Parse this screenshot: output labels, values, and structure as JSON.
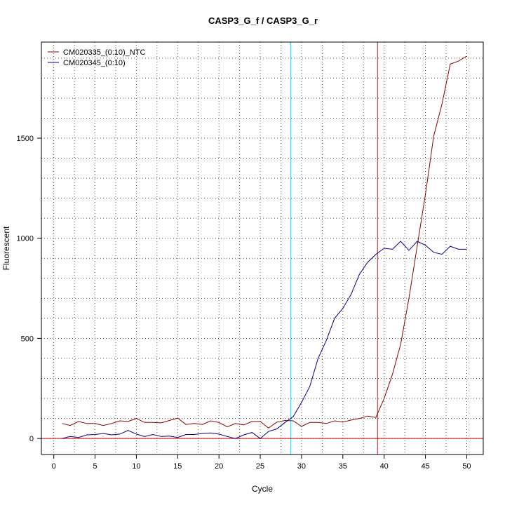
{
  "chart_data": {
    "type": "line",
    "title": "CASP3_G_f / CASP3_G_r",
    "xlabel": "Cycle",
    "ylabel": "Fluorescent",
    "xlim": [
      -1.5,
      52
    ],
    "ylim": [
      -80,
      1980
    ],
    "x_ticks": [
      0,
      5,
      10,
      15,
      20,
      25,
      30,
      35,
      40,
      45,
      50
    ],
    "y_ticks": [
      0,
      500,
      1000,
      1500
    ],
    "grid": true,
    "legend_position": "top-left",
    "vertical_markers": [
      {
        "x": 28.7,
        "color": "#00e5ee"
      },
      {
        "x": 39.2,
        "color": "#b22222"
      }
    ],
    "threshold": {
      "y": 0,
      "color": "#cc0000"
    },
    "series": [
      {
        "name": "CM020335_(0:10)_NTC",
        "color": "#8b0000",
        "x": [
          1,
          2,
          3,
          4,
          5,
          6,
          7,
          8,
          9,
          10,
          11,
          12,
          13,
          14,
          15,
          16,
          17,
          18,
          19,
          20,
          21,
          22,
          23,
          24,
          25,
          26,
          27,
          28,
          29,
          30,
          31,
          32,
          33,
          34,
          35,
          36,
          37,
          38,
          39,
          40,
          41,
          42,
          43,
          44,
          45,
          46,
          47,
          48,
          49,
          50
        ],
        "values": [
          75,
          65,
          85,
          75,
          75,
          65,
          75,
          88,
          85,
          100,
          80,
          80,
          78,
          90,
          102,
          70,
          75,
          70,
          88,
          80,
          58,
          75,
          68,
          85,
          85,
          52,
          82,
          90,
          88,
          60,
          80,
          80,
          75,
          88,
          82,
          92,
          100,
          112,
          105,
          200,
          320,
          470,
          700,
          960,
          1220,
          1510,
          1670,
          1870,
          1885,
          1910
        ]
      },
      {
        "name": "CM020345_(0:10)",
        "color": "#00008b",
        "x": [
          1,
          2,
          3,
          4,
          5,
          6,
          7,
          8,
          9,
          10,
          11,
          12,
          13,
          14,
          15,
          16,
          17,
          18,
          19,
          20,
          21,
          22,
          23,
          24,
          25,
          26,
          27,
          28,
          29,
          30,
          31,
          32,
          33,
          34,
          35,
          36,
          37,
          38,
          39,
          40,
          41,
          42,
          43,
          44,
          45,
          46,
          47,
          48,
          49,
          50
        ],
        "values": [
          0,
          10,
          5,
          18,
          20,
          25,
          18,
          22,
          40,
          22,
          10,
          20,
          10,
          12,
          5,
          20,
          20,
          25,
          28,
          22,
          10,
          0,
          18,
          30,
          0,
          35,
          48,
          80,
          110,
          180,
          260,
          400,
          490,
          600,
          650,
          720,
          820,
          880,
          920,
          950,
          945,
          985,
          940,
          985,
          965,
          930,
          920,
          960,
          945,
          945
        ]
      }
    ]
  }
}
